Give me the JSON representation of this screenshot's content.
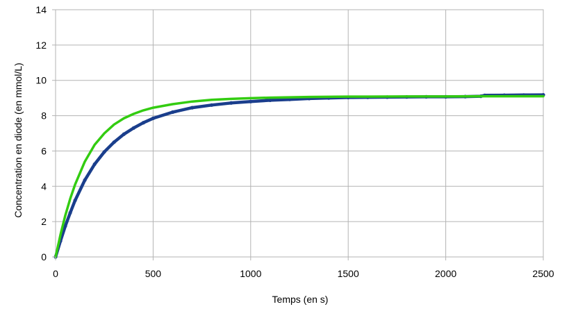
{
  "chart_data": {
    "type": "line",
    "title": "",
    "xlabel": "Temps (en s)",
    "ylabel": "Concentration en diode (en mmol/L)",
    "xlim": [
      0,
      2500
    ],
    "ylim": [
      0,
      14
    ],
    "xticks": [
      0,
      500,
      1000,
      1500,
      2000,
      2500
    ],
    "yticks": [
      0,
      2,
      4,
      6,
      8,
      10,
      12,
      14
    ],
    "grid": true,
    "legend": "none",
    "series": [
      {
        "color": "#1a3e8c",
        "style": "thick-markers",
        "x": [
          0,
          25,
          50,
          75,
          100,
          150,
          200,
          250,
          300,
          350,
          400,
          450,
          500,
          600,
          700,
          800,
          900,
          1000,
          1100,
          1200,
          1300,
          1400,
          1500,
          1600,
          1700,
          1800,
          1900,
          2000,
          2100,
          2180,
          2200,
          2300,
          2400,
          2500
        ],
        "values": [
          0,
          0.9,
          1.75,
          2.5,
          3.2,
          4.35,
          5.25,
          5.95,
          6.5,
          6.95,
          7.3,
          7.6,
          7.85,
          8.2,
          8.45,
          8.6,
          8.72,
          8.8,
          8.87,
          8.92,
          8.97,
          9.0,
          9.03,
          9.04,
          9.05,
          9.06,
          9.07,
          9.07,
          9.08,
          9.1,
          9.15,
          9.16,
          9.17,
          9.18
        ]
      },
      {
        "color": "#33cc11",
        "style": "smooth",
        "x": [
          0,
          25,
          50,
          75,
          100,
          150,
          200,
          250,
          300,
          350,
          400,
          450,
          500,
          600,
          700,
          800,
          900,
          1000,
          1100,
          1200,
          1300,
          1400,
          1500,
          1600,
          1800,
          2000,
          2200,
          2500
        ],
        "values": [
          0,
          1.25,
          2.35,
          3.3,
          4.1,
          5.4,
          6.35,
          7.0,
          7.5,
          7.85,
          8.1,
          8.3,
          8.45,
          8.65,
          8.8,
          8.9,
          8.95,
          8.99,
          9.02,
          9.04,
          9.06,
          9.07,
          9.08,
          9.08,
          9.09,
          9.09,
          9.1,
          9.1
        ]
      }
    ]
  }
}
